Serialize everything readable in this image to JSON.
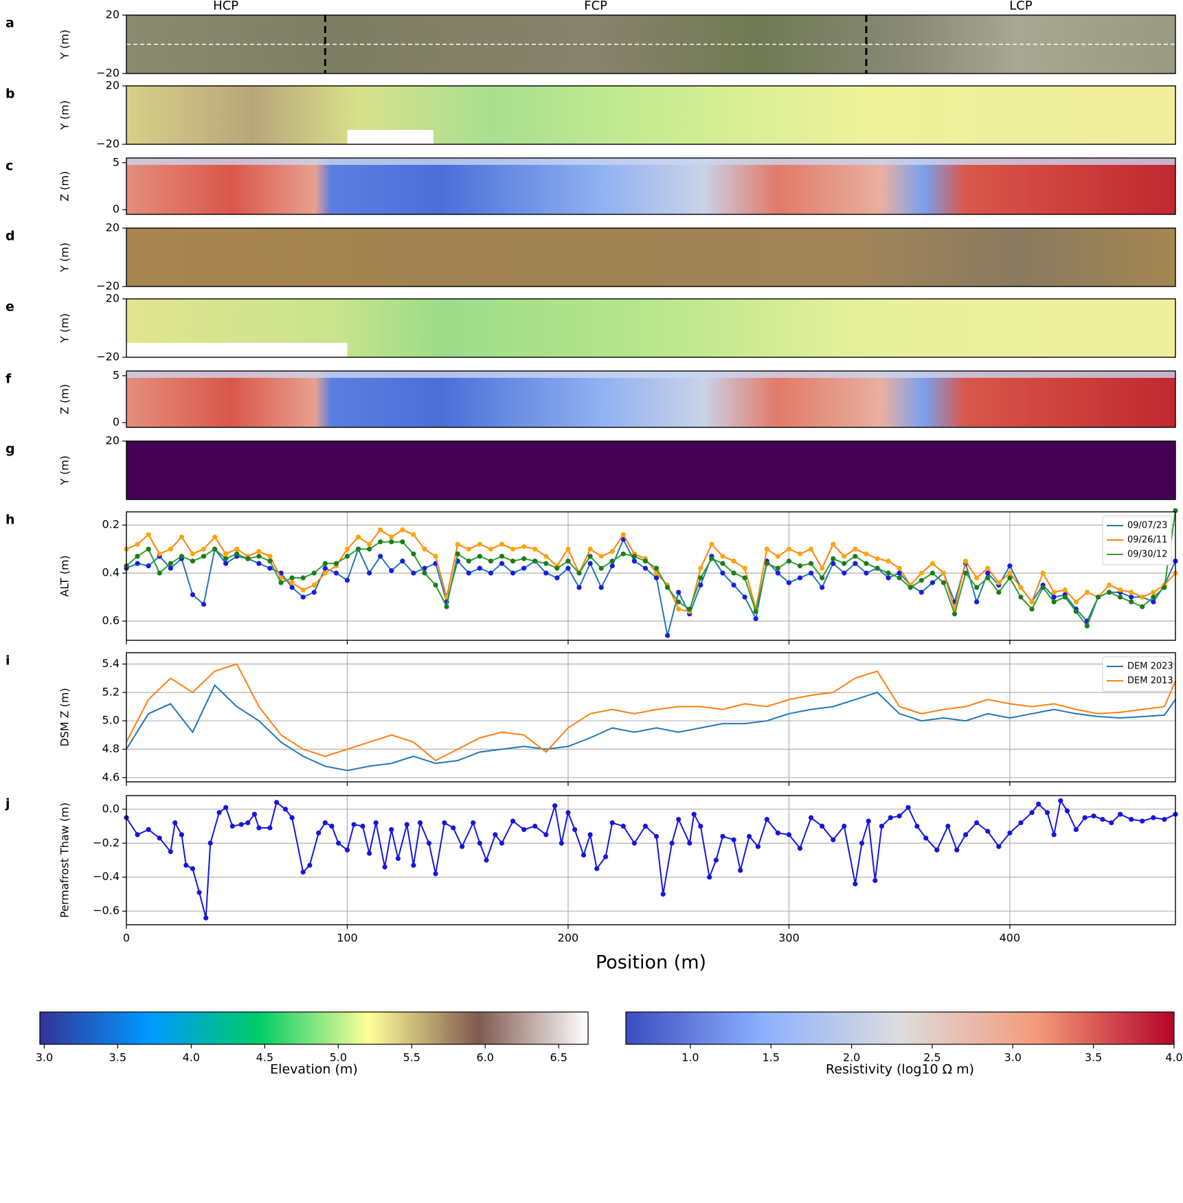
{
  "chart_data": [
    {
      "type": "image",
      "panel": "a",
      "ylabel": "Y (m)",
      "ylim": [
        -20,
        20
      ],
      "yticks": [
        20,
        {
          "value": -20,
          "label": "−20"
        }
      ],
      "xlim": [
        0,
        475
      ],
      "dividers": [
        90,
        335
      ],
      "annotations": [
        "HCP",
        "FCP",
        "LCP"
      ]
    },
    {
      "type": "image",
      "panel": "b",
      "ylabel": "Y (m)",
      "ylim": [
        -20,
        20
      ],
      "yticks": [
        20,
        {
          "value": -20,
          "label": "−20"
        }
      ]
    },
    {
      "type": "image",
      "panel": "c",
      "ylabel": "Z (m)",
      "ylim": [
        -0.5,
        5.5
      ],
      "yticks": [
        5,
        0
      ]
    },
    {
      "type": "image",
      "panel": "d",
      "ylabel": "Y (m)",
      "ylim": [
        -20,
        20
      ],
      "yticks": [
        20,
        {
          "value": -20,
          "label": "−20"
        }
      ]
    },
    {
      "type": "image",
      "panel": "e",
      "ylabel": "Y (m)",
      "ylim": [
        -20,
        20
      ],
      "yticks": [
        20,
        {
          "value": -20,
          "label": "−20"
        }
      ]
    },
    {
      "type": "image",
      "panel": "f",
      "ylabel": "Z (m)",
      "ylim": [
        -0.5,
        5.5
      ],
      "yticks": [
        5,
        0
      ]
    },
    {
      "type": "image",
      "panel": "g",
      "ylabel": "Y (m)",
      "ylim": [
        -20,
        20
      ],
      "yticks": [
        20
      ]
    },
    {
      "type": "line",
      "panel": "h",
      "ylabel": "ALT (m)",
      "xlim": [
        0,
        475
      ],
      "xticks": [
        0,
        100,
        200,
        300,
        400
      ],
      "ylim": [
        0.68,
        0.145
      ],
      "yticks": [
        0.2,
        0.4,
        0.6
      ],
      "grid": true,
      "legend": "upper right",
      "markers": true,
      "x": [
        0,
        5,
        10,
        15,
        20,
        25,
        30,
        35,
        40,
        45,
        50,
        55,
        60,
        65,
        70,
        75,
        80,
        85,
        90,
        95,
        100,
        105,
        110,
        115,
        120,
        125,
        130,
        135,
        140,
        145,
        150,
        155,
        160,
        165,
        170,
        175,
        180,
        185,
        190,
        195,
        200,
        205,
        210,
        215,
        220,
        225,
        230,
        235,
        240,
        245,
        250,
        255,
        260,
        265,
        270,
        275,
        280,
        285,
        290,
        295,
        300,
        305,
        310,
        315,
        320,
        325,
        330,
        335,
        340,
        345,
        350,
        355,
        360,
        365,
        370,
        375,
        380,
        385,
        390,
        395,
        400,
        405,
        410,
        415,
        420,
        425,
        430,
        435,
        440,
        445,
        450,
        455,
        460,
        465,
        470,
        475
      ],
      "series": [
        {
          "name": "09/07/23",
          "color": "#1f77b4",
          "marker_color": "#1a1ae6",
          "values": [
            0.38,
            0.36,
            0.37,
            0.33,
            0.38,
            0.34,
            0.49,
            0.53,
            0.3,
            0.36,
            0.33,
            0.34,
            0.36,
            0.38,
            0.4,
            0.46,
            0.5,
            0.48,
            0.38,
            0.4,
            0.43,
            0.3,
            0.4,
            0.33,
            0.39,
            0.35,
            0.4,
            0.38,
            0.36,
            0.52,
            0.35,
            0.4,
            0.38,
            0.4,
            0.36,
            0.4,
            0.38,
            0.35,
            0.4,
            0.42,
            0.38,
            0.46,
            0.36,
            0.46,
            0.37,
            0.26,
            0.35,
            0.38,
            0.42,
            0.66,
            0.48,
            0.57,
            0.45,
            0.33,
            0.4,
            0.45,
            0.5,
            0.59,
            0.35,
            0.4,
            0.44,
            0.42,
            0.4,
            0.46,
            0.36,
            0.4,
            0.36,
            0.4,
            0.38,
            0.42,
            0.4,
            0.45,
            0.48,
            0.44,
            0.4,
            0.52,
            0.36,
            0.52,
            0.4,
            0.45,
            0.37,
            0.46,
            0.52,
            0.45,
            0.5,
            0.49,
            0.55,
            0.6,
            0.5,
            0.48,
            0.48,
            0.5,
            0.5,
            0.52,
            0.45,
            0.35
          ]
        },
        {
          "name": "09/26/11",
          "color": "#ff7f0e",
          "marker_color": "#ffa500",
          "values": [
            0.3,
            0.28,
            0.24,
            0.32,
            0.3,
            0.25,
            0.32,
            0.3,
            0.25,
            0.32,
            0.3,
            0.33,
            0.31,
            0.33,
            0.42,
            0.44,
            0.47,
            0.45,
            0.4,
            0.37,
            0.3,
            0.25,
            0.28,
            0.22,
            0.25,
            0.22,
            0.24,
            0.3,
            0.33,
            0.5,
            0.28,
            0.3,
            0.28,
            0.3,
            0.28,
            0.3,
            0.29,
            0.3,
            0.33,
            0.37,
            0.3,
            0.4,
            0.3,
            0.33,
            0.31,
            0.24,
            0.32,
            0.34,
            0.4,
            0.45,
            0.55,
            0.56,
            0.38,
            0.28,
            0.33,
            0.35,
            0.38,
            0.55,
            0.3,
            0.33,
            0.3,
            0.32,
            0.3,
            0.38,
            0.28,
            0.33,
            0.3,
            0.32,
            0.34,
            0.35,
            0.38,
            0.45,
            0.4,
            0.36,
            0.4,
            0.55,
            0.35,
            0.42,
            0.38,
            0.44,
            0.4,
            0.46,
            0.52,
            0.4,
            0.48,
            0.47,
            0.52,
            0.48,
            0.5,
            0.45,
            0.47,
            0.48,
            0.5,
            0.48,
            0.45,
            0.4
          ]
        },
        {
          "name": "09/30/12",
          "color": "#2ca02c",
          "marker_color": "#1e7a1e",
          "values": [
            0.37,
            0.33,
            0.3,
            0.4,
            0.36,
            0.33,
            0.35,
            0.33,
            0.3,
            0.34,
            0.32,
            0.34,
            0.33,
            0.35,
            0.44,
            0.42,
            0.42,
            0.4,
            0.36,
            0.36,
            0.33,
            0.3,
            0.3,
            0.27,
            0.27,
            0.27,
            0.32,
            0.4,
            0.45,
            0.54,
            0.32,
            0.35,
            0.33,
            0.35,
            0.33,
            0.35,
            0.34,
            0.35,
            0.36,
            0.38,
            0.35,
            0.4,
            0.33,
            0.38,
            0.35,
            0.32,
            0.33,
            0.35,
            0.38,
            0.46,
            0.52,
            0.55,
            0.42,
            0.34,
            0.36,
            0.4,
            0.42,
            0.56,
            0.36,
            0.38,
            0.35,
            0.37,
            0.36,
            0.42,
            0.34,
            0.36,
            0.33,
            0.36,
            0.38,
            0.4,
            0.42,
            0.46,
            0.43,
            0.4,
            0.44,
            0.57,
            0.4,
            0.46,
            0.42,
            0.48,
            0.42,
            0.5,
            0.55,
            0.46,
            0.52,
            0.5,
            0.56,
            0.62,
            0.5,
            0.48,
            0.5,
            0.52,
            0.54,
            0.5,
            0.46,
            0.14
          ]
        }
      ]
    },
    {
      "type": "line",
      "panel": "i",
      "ylabel": "DSM Z (m)",
      "xlim": [
        0,
        475
      ],
      "xticks": [
        0,
        100,
        200,
        300,
        400
      ],
      "ylim": [
        4.57,
        5.48
      ],
      "yticks": [
        4.6,
        4.8,
        {
          "value": 5.0,
          "label": "5.0"
        },
        5.2,
        5.4
      ],
      "grid": true,
      "legend": "upper right",
      "markers": false,
      "x": [
        0,
        10,
        20,
        30,
        40,
        50,
        60,
        70,
        80,
        90,
        100,
        110,
        120,
        130,
        140,
        150,
        160,
        170,
        180,
        190,
        200,
        210,
        220,
        230,
        240,
        250,
        260,
        270,
        280,
        290,
        300,
        310,
        320,
        330,
        340,
        350,
        360,
        370,
        380,
        390,
        400,
        410,
        420,
        430,
        440,
        450,
        460,
        470,
        475
      ],
      "series": [
        {
          "name": "DEM 2023",
          "color": "#1f77b4",
          "values": [
            4.8,
            5.05,
            5.12,
            4.92,
            5.25,
            5.1,
            5.0,
            4.85,
            4.75,
            4.68,
            4.65,
            4.68,
            4.7,
            4.75,
            4.7,
            4.72,
            4.78,
            4.8,
            4.82,
            4.8,
            4.82,
            4.88,
            4.95,
            4.92,
            4.95,
            4.92,
            4.95,
            4.98,
            4.98,
            5.0,
            5.05,
            5.08,
            5.1,
            5.15,
            5.2,
            5.05,
            5.0,
            5.02,
            5.0,
            5.05,
            5.02,
            5.05,
            5.08,
            5.05,
            5.03,
            5.02,
            5.03,
            5.04,
            5.15
          ]
        },
        {
          "name": "DEM 2013",
          "color": "#ff7f0e",
          "values": [
            4.85,
            5.15,
            5.3,
            5.2,
            5.35,
            5.4,
            5.1,
            4.9,
            4.8,
            4.75,
            4.8,
            4.85,
            4.9,
            4.85,
            4.72,
            4.8,
            4.88,
            4.92,
            4.9,
            4.78,
            4.95,
            5.05,
            5.08,
            5.05,
            5.08,
            5.1,
            5.1,
            5.08,
            5.12,
            5.1,
            5.15,
            5.18,
            5.2,
            5.3,
            5.35,
            5.1,
            5.05,
            5.08,
            5.1,
            5.15,
            5.12,
            5.1,
            5.12,
            5.08,
            5.05,
            5.06,
            5.08,
            5.1,
            5.28
          ]
        }
      ]
    },
    {
      "type": "line",
      "panel": "j",
      "ylabel": "Permafrost Thaw (m)",
      "xlabel": "Position (m)",
      "xlim": [
        0,
        475
      ],
      "xticks": [
        0,
        100,
        200,
        300,
        400
      ],
      "ylim": [
        -0.68,
        0.08
      ],
      "yticks": [
        {
          "value": 0.0,
          "label": "0.0"
        },
        {
          "value": -0.2,
          "label": "−0.2"
        },
        {
          "value": -0.4,
          "label": "−0.4"
        },
        {
          "value": -0.6,
          "label": "−0.6"
        }
      ],
      "grid": true,
      "markers": true,
      "x": [
        0,
        5,
        10,
        15,
        20,
        22,
        25,
        27,
        30,
        33,
        36,
        38,
        42,
        45,
        48,
        52,
        55,
        58,
        60,
        65,
        68,
        72,
        75,
        80,
        83,
        87,
        90,
        93,
        96,
        100,
        103,
        107,
        110,
        113,
        117,
        120,
        123,
        127,
        130,
        133,
        137,
        140,
        144,
        148,
        152,
        157,
        160,
        163,
        167,
        170,
        175,
        180,
        185,
        190,
        194,
        197,
        200,
        203,
        207,
        210,
        213,
        217,
        220,
        225,
        230,
        235,
        240,
        243,
        247,
        250,
        255,
        257,
        260,
        264,
        267,
        270,
        275,
        278,
        282,
        286,
        290,
        295,
        300,
        305,
        310,
        315,
        320,
        325,
        330,
        333,
        336,
        339,
        342,
        346,
        350,
        354,
        358,
        362,
        367,
        372,
        376,
        380,
        385,
        390,
        395,
        400,
        405,
        410,
        413,
        417,
        420,
        423,
        426,
        430,
        434,
        438,
        442,
        446,
        450,
        455,
        460,
        465,
        470,
        475
      ],
      "series": [
        {
          "color": "#1515e0",
          "marker_color": "#1515e0",
          "values": [
            -0.05,
            -0.15,
            -0.12,
            -0.17,
            -0.25,
            -0.08,
            -0.15,
            -0.33,
            -0.35,
            -0.49,
            -0.64,
            -0.2,
            -0.02,
            0.01,
            -0.1,
            -0.09,
            -0.08,
            -0.03,
            -0.11,
            -0.11,
            0.04,
            0,
            -0.05,
            -0.37,
            -0.33,
            -0.14,
            -0.08,
            -0.1,
            -0.2,
            -0.24,
            -0.09,
            -0.1,
            -0.26,
            -0.08,
            -0.34,
            -0.12,
            -0.29,
            -0.09,
            -0.33,
            -0.08,
            -0.2,
            -0.38,
            -0.08,
            -0.11,
            -0.22,
            -0.08,
            -0.2,
            -0.3,
            -0.15,
            -0.2,
            -0.07,
            -0.12,
            -0.1,
            -0.15,
            0.02,
            -0.2,
            -0.02,
            -0.12,
            -0.27,
            -0.15,
            -0.35,
            -0.28,
            -0.08,
            -0.1,
            -0.2,
            -0.1,
            -0.16,
            -0.5,
            -0.2,
            -0.06,
            -0.2,
            -0.03,
            -0.1,
            -0.4,
            -0.3,
            -0.16,
            -0.18,
            -0.36,
            -0.16,
            -0.22,
            -0.06,
            -0.14,
            -0.15,
            -0.23,
            -0.05,
            -0.1,
            -0.18,
            -0.1,
            -0.44,
            -0.2,
            -0.07,
            -0.42,
            -0.1,
            -0.05,
            -0.04,
            0.01,
            -0.1,
            -0.17,
            -0.24,
            -0.1,
            -0.24,
            -0.15,
            -0.08,
            -0.13,
            -0.22,
            -0.14,
            -0.08,
            -0.02,
            0.03,
            -0.02,
            -0.15,
            0.05,
            -0.01,
            -0.12,
            -0.05,
            -0.04,
            -0.06,
            -0.08,
            -0.03,
            -0.06,
            -0.07,
            -0.05,
            -0.06,
            -0.03
          ]
        }
      ]
    },
    {
      "type": "colorbar",
      "label": "Elevation (m)",
      "xlim": [
        2.97,
        6.7
      ],
      "xticks": [
        {
          "value": 3.0,
          "label": "3.0"
        },
        3.5,
        {
          "value": 4.0,
          "label": "4.0"
        },
        4.5,
        {
          "value": 5.0,
          "label": "5.0"
        },
        5.5,
        {
          "value": 6.0,
          "label": "6.0"
        },
        6.5
      ],
      "colors": [
        "#333399",
        "#0099ff",
        "#00cc66",
        "#ffff99",
        "#805a50",
        "#ffffff"
      ]
    },
    {
      "type": "colorbar",
      "label": "Resistivity (log10 Ω m)",
      "xlim": [
        0.6,
        4.0
      ],
      "xticks": [
        {
          "value": 1.0,
          "label": "1.0"
        },
        1.5,
        {
          "value": 2.0,
          "label": "2.0"
        },
        2.5,
        {
          "value": 3.0,
          "label": "3.0"
        },
        3.5,
        {
          "value": 4.0,
          "label": "4.0"
        }
      ],
      "colors": [
        "#3b4cc0",
        "#8db0fe",
        "#dddddd",
        "#f49a7b",
        "#b40426"
      ]
    }
  ]
}
